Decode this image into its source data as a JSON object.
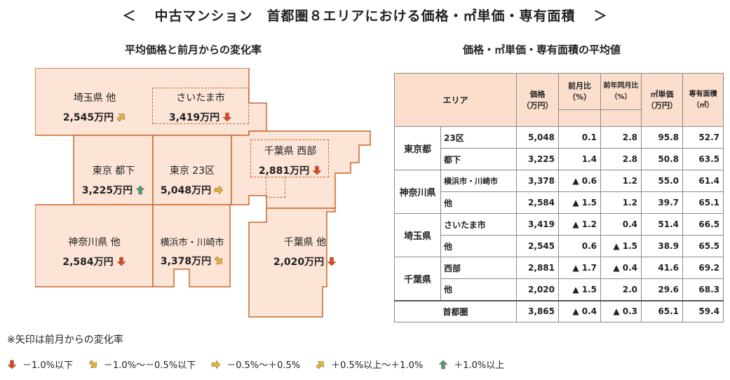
{
  "title": {
    "open": "＜",
    "text": "中古マンション　首都圏８エリアにおける価格・㎡単価・専有面積",
    "close": "＞"
  },
  "left_subtitle": "平均価格と前月からの変化率",
  "right_subtitle": "価格・㎡単価・専有面積の平均値",
  "colors": {
    "region_fill": "#fce4d6",
    "region_stroke": "#c6692c",
    "down": "#d9472b",
    "down_mid": "#e3b23c",
    "flat": "#e3b23c",
    "up_mid": "#e3b23c",
    "up": "#4f9a80",
    "header_fill": "#fbdfcc"
  },
  "map": {
    "regions": [
      {
        "name": "埼玉県 他",
        "price": "2,545万円",
        "arrow": "up-mid"
      },
      {
        "name": "さいたま市",
        "price": "3,419万円",
        "arrow": "down"
      },
      {
        "name": "東京 都下",
        "price": "3,225万円",
        "arrow": "up"
      },
      {
        "name": "東京 23区",
        "price": "5,048万円",
        "arrow": "flat"
      },
      {
        "name": "千葉県 西部",
        "price": "2,881万円",
        "arrow": "down"
      },
      {
        "name": "神奈川県 他",
        "price": "2,584万円",
        "arrow": "down"
      },
      {
        "name": "横浜市・川崎市",
        "price": "3,378万円",
        "arrow": "down-mid"
      },
      {
        "name": "千葉県 他",
        "price": "2,020万円",
        "arrow": "down"
      }
    ]
  },
  "table": {
    "headers": {
      "area": "エリア",
      "price": "価格\n（万円）",
      "mom": "前月比\n（%）",
      "yoy": "前年同月比\n（%）",
      "unit": "㎡単価\n（万円）",
      "size": "専有面積\n（㎡）"
    },
    "groups": [
      {
        "pref": "東京都",
        "rows": [
          {
            "sub": "23区",
            "price": "5,048",
            "mom": "0.1",
            "yoy": "2.8",
            "unit": "95.8",
            "size": "52.7"
          },
          {
            "sub": "都下",
            "price": "3,225",
            "mom": "1.4",
            "yoy": "2.8",
            "unit": "50.8",
            "size": "63.5"
          }
        ]
      },
      {
        "pref": "神奈川県",
        "rows": [
          {
            "sub": "横浜市・川崎市",
            "price": "3,378",
            "mom": "▲ 0.6",
            "yoy": "1.2",
            "unit": "55.0",
            "size": "61.4"
          },
          {
            "sub": "他",
            "price": "2,584",
            "mom": "▲ 1.5",
            "yoy": "1.2",
            "unit": "39.7",
            "size": "65.1"
          }
        ]
      },
      {
        "pref": "埼玉県",
        "rows": [
          {
            "sub": "さいたま市",
            "price": "3,419",
            "mom": "▲ 1.2",
            "yoy": "0.4",
            "unit": "51.4",
            "size": "66.5"
          },
          {
            "sub": "他",
            "price": "2,545",
            "mom": "0.6",
            "yoy": "▲ 1.5",
            "unit": "38.9",
            "size": "65.5"
          }
        ]
      },
      {
        "pref": "千葉県",
        "rows": [
          {
            "sub": "西部",
            "price": "2,881",
            "mom": "▲ 1.7",
            "yoy": "▲ 0.4",
            "unit": "41.6",
            "size": "69.2"
          },
          {
            "sub": "他",
            "price": "2,020",
            "mom": "▲ 1.5",
            "yoy": "2.0",
            "unit": "29.6",
            "size": "68.3"
          }
        ]
      }
    ],
    "total": {
      "label": "首都圏",
      "price": "3,865",
      "mom": "▲ 0.4",
      "yoy": "▲ 0.3",
      "unit": "65.1",
      "size": "59.4"
    }
  },
  "note": "※矢印は前月からの変化率",
  "legend": [
    {
      "arrow": "down",
      "label": "－1.0%以下"
    },
    {
      "arrow": "down-mid",
      "label": "－1.0%～－0.5%以下"
    },
    {
      "arrow": "flat",
      "label": "－0.5%～＋0.5%"
    },
    {
      "arrow": "up-mid",
      "label": "＋0.5%以上～＋1.0%"
    },
    {
      "arrow": "up",
      "label": "＋1.0%以上"
    }
  ],
  "chart_data": {
    "type": "table",
    "categories": [
      "東京都 23区",
      "東京都 都下",
      "神奈川県 横浜市・川崎市",
      "神奈川県 他",
      "埼玉県 さいたま市",
      "埼玉県 他",
      "千葉県 西部",
      "千葉県 他",
      "首都圏"
    ],
    "series": [
      {
        "name": "価格（万円）",
        "values": [
          5048,
          3225,
          3378,
          2584,
          3419,
          2545,
          2881,
          2020,
          3865
        ]
      },
      {
        "name": "前月比（%）",
        "values": [
          0.1,
          1.4,
          -0.6,
          -1.5,
          -1.2,
          0.6,
          -1.7,
          -1.5,
          -0.4
        ]
      },
      {
        "name": "前年同月比（%）",
        "values": [
          2.8,
          2.8,
          1.2,
          1.2,
          0.4,
          -1.5,
          -0.4,
          2.0,
          -0.3
        ]
      },
      {
        "name": "㎡単価（万円）",
        "values": [
          95.8,
          50.8,
          55.0,
          39.7,
          51.4,
          38.9,
          41.6,
          29.6,
          65.1
        ]
      },
      {
        "name": "専有面積（㎡）",
        "values": [
          52.7,
          63.5,
          61.4,
          65.1,
          66.5,
          65.5,
          69.2,
          68.3,
          59.4
        ]
      }
    ]
  }
}
